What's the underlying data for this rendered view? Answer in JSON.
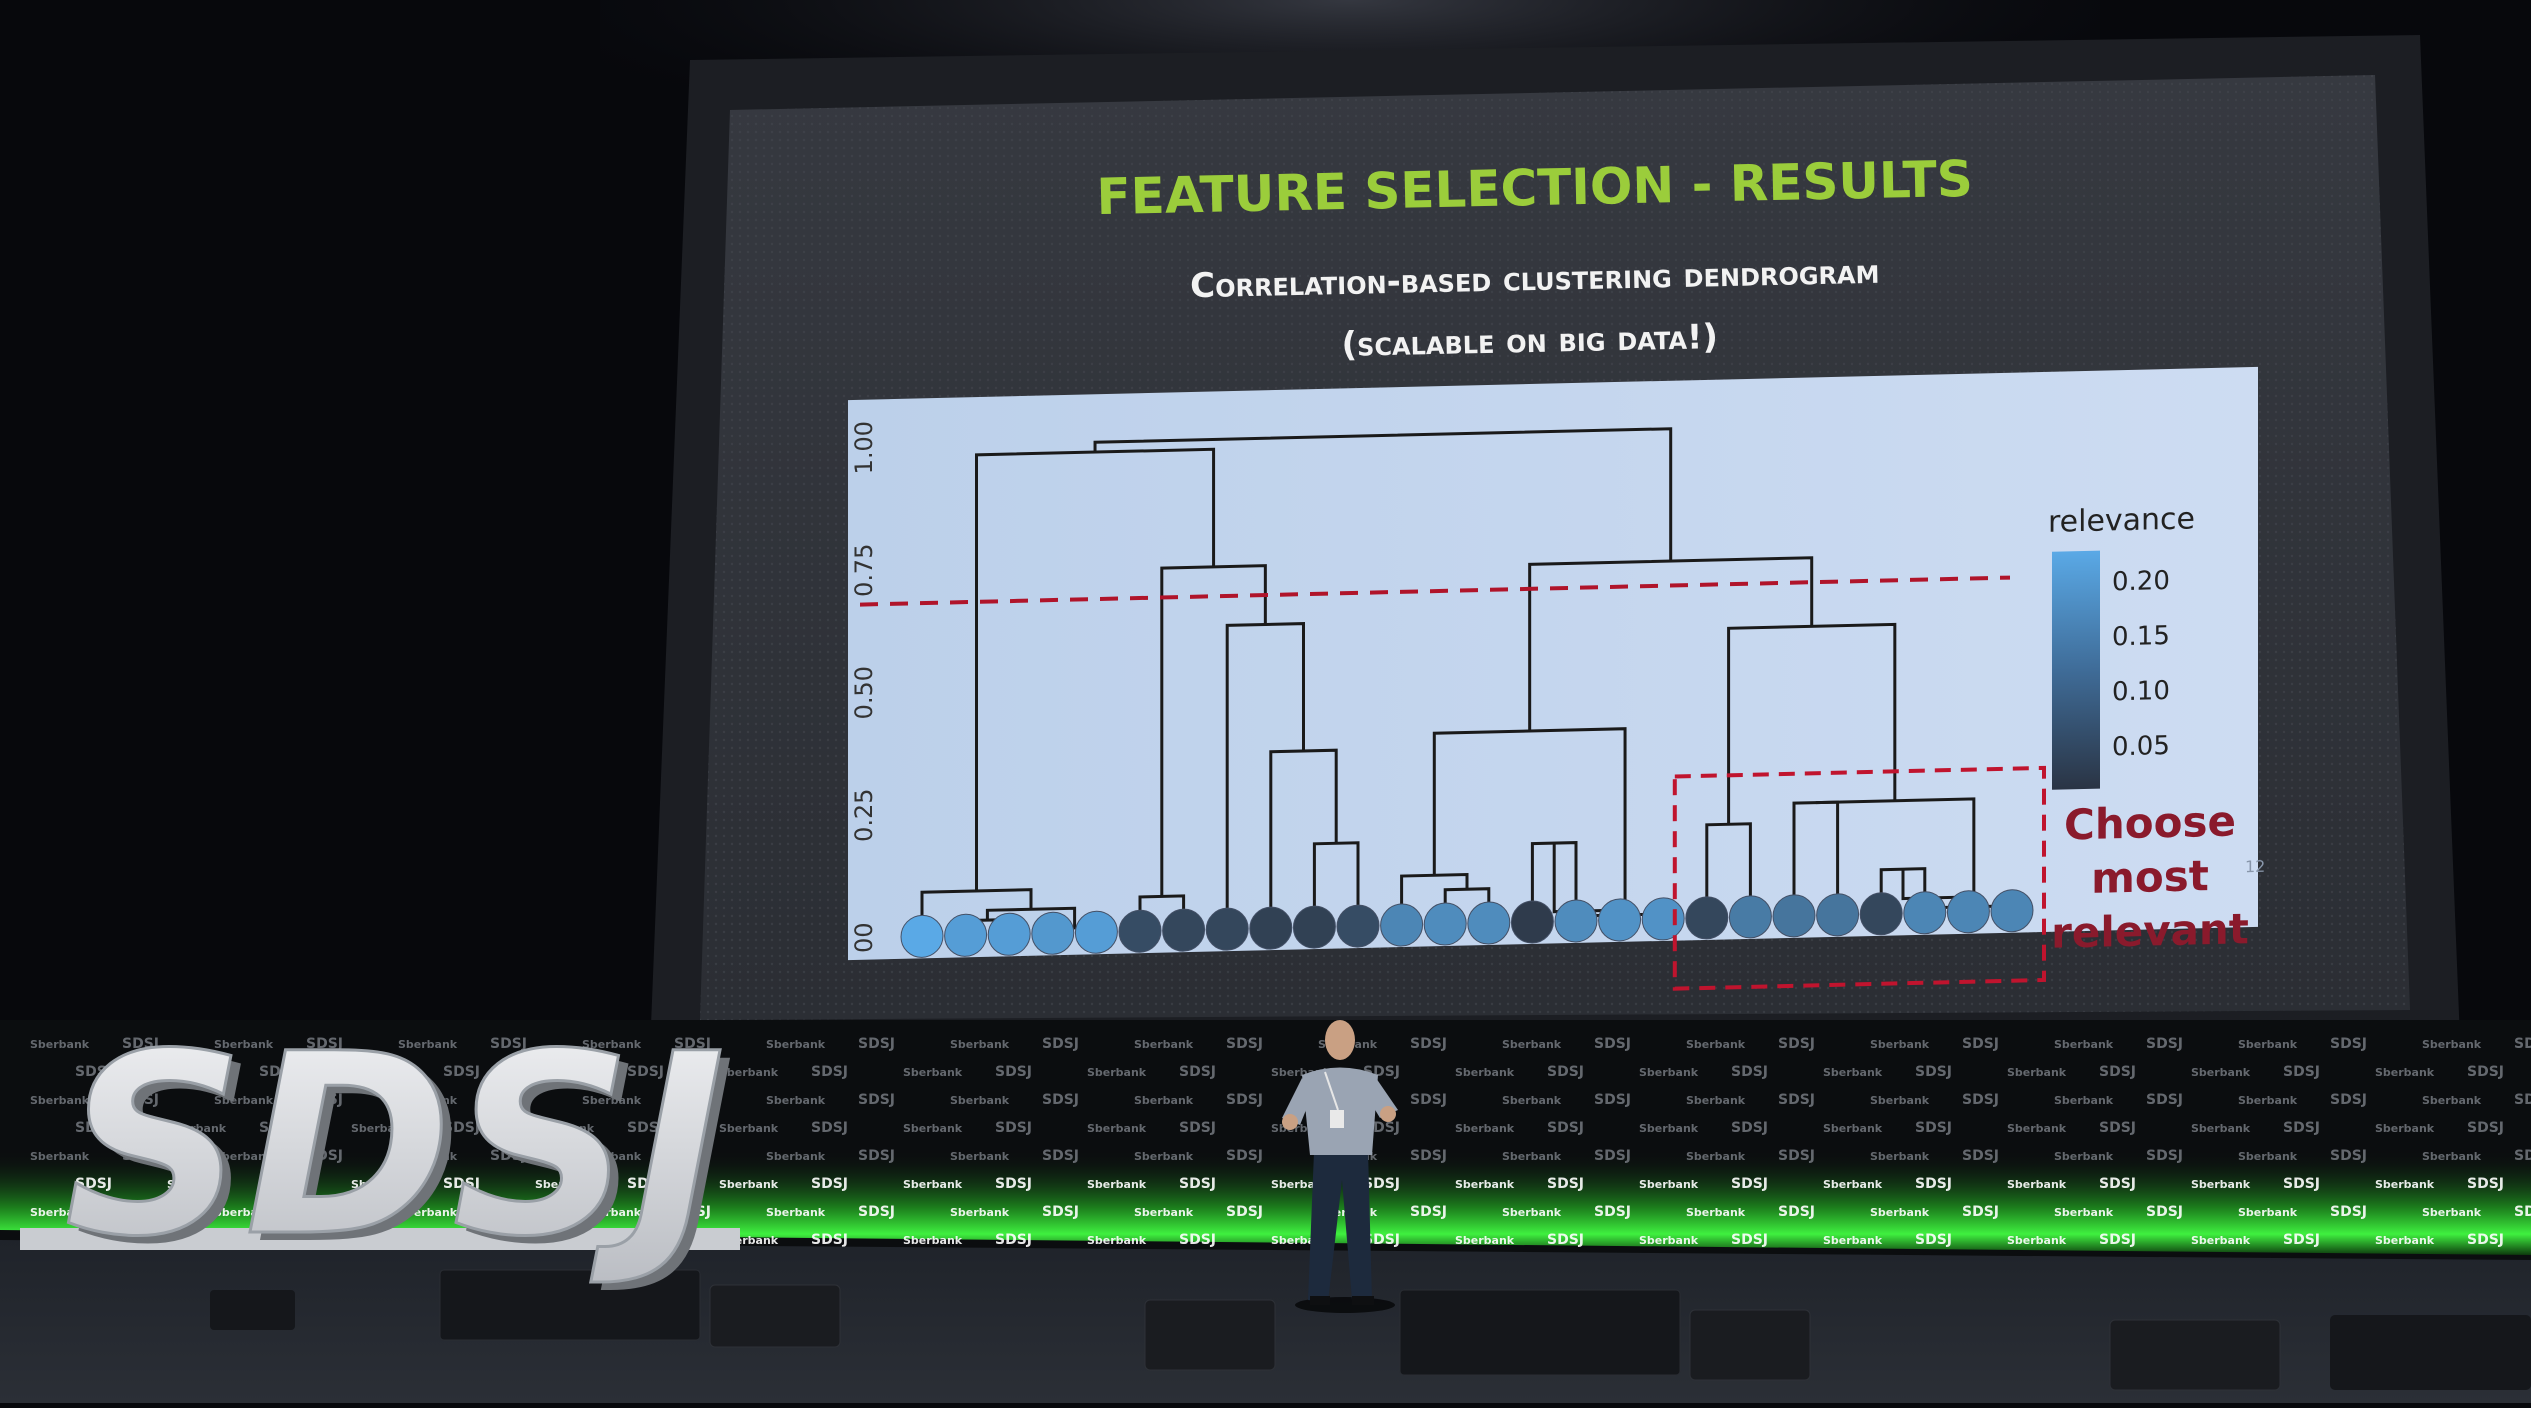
{
  "slide": {
    "title": "FEATURE SELECTION - RESULTS",
    "subtitle_line1": "Correlation-based clustering dendrogram",
    "subtitle_line2": "(scalable on big data!)",
    "page_number": "12",
    "callout_line1": "Choose",
    "callout_line2": "most",
    "callout_line3": "relevant"
  },
  "event": {
    "logo_text": "SDSJ",
    "wall_text": "SDSJ",
    "sponsor_name": "Sberbank",
    "colors": {
      "green": "#39e639",
      "wall": "#0b0d0f"
    }
  },
  "chart_data": {
    "type": "dendrogram",
    "y_tick_labels": [
      "00",
      "0.25",
      "0.50",
      "0.75",
      "1.00"
    ],
    "ylim": [
      0,
      1.0
    ],
    "cut_threshold": 0.68,
    "colorbar": {
      "label": "relevance",
      "tick_labels": [
        "0.20",
        "0.15",
        "0.10",
        "0.05"
      ],
      "colors": [
        "#5aa9e6",
        "#2f3b4c"
      ]
    },
    "highlight_box_leaves": [
      18,
      25
    ],
    "leaf_relevance": [
      0.22,
      0.2,
      0.2,
      0.19,
      0.2,
      0.06,
      0.05,
      0.05,
      0.04,
      0.04,
      0.06,
      0.16,
      0.17,
      0.17,
      0.03,
      0.17,
      0.18,
      0.18,
      0.05,
      0.14,
      0.13,
      0.13,
      0.05,
      0.16,
      0.16,
      0.16
    ],
    "merges": [
      {
        "id": "n1",
        "l": 1,
        "r": 2,
        "h": 0.03
      },
      {
        "id": "n2",
        "l": 3,
        "r": 4,
        "h": 0.01
      },
      {
        "id": "n3",
        "l": "n1",
        "r": "n2",
        "h": 0.05
      },
      {
        "id": "n4",
        "l": 0,
        "r": "n3",
        "h": 0.09
      },
      {
        "id": "n5",
        "l": 5,
        "r": 6,
        "h": 0.07
      },
      {
        "id": "n6",
        "l": 9,
        "r": 10,
        "h": 0.17
      },
      {
        "id": "n7",
        "l": 8,
        "r": "n6",
        "h": 0.36
      },
      {
        "id": "n8",
        "l": 7,
        "r": "n7",
        "h": 0.62
      },
      {
        "id": "n9",
        "l": "n5",
        "r": "n8",
        "h": 0.74
      },
      {
        "id": "n10",
        "l": "n4",
        "r": "n9",
        "h": 0.98
      },
      {
        "id": "n11",
        "l": 12,
        "r": 13,
        "h": 0.07
      },
      {
        "id": "n12",
        "l": 11,
        "r": "n11",
        "h": 0.1
      },
      {
        "id": "n13",
        "l": 14,
        "r": 15,
        "h": 0.16
      },
      {
        "id": "n14",
        "l": "n13",
        "r": 16,
        "h": 0.02
      },
      {
        "id": "n15",
        "l": "n14",
        "r": 17,
        "h": 0.01
      },
      {
        "id": "n16",
        "l": "n12",
        "r": "n15",
        "h": 0.39
      },
      {
        "id": "n17",
        "l": 18,
        "r": 19,
        "h": 0.19
      },
      {
        "id": "n18",
        "l": 20,
        "r": 21,
        "h": 0.23
      },
      {
        "id": "n19",
        "l": 22,
        "r": 23,
        "h": 0.09
      },
      {
        "id": "n20",
        "l": "n19",
        "r": 24,
        "h": 0.03
      },
      {
        "id": "n21",
        "l": "n20",
        "r": 25,
        "h": 0.01
      },
      {
        "id": "n22",
        "l": "n18",
        "r": "n21",
        "h": 0.23
      },
      {
        "id": "n23",
        "l": "n17",
        "r": "n22",
        "h": 0.59
      },
      {
        "id": "n24",
        "l": "n16",
        "r": "n23",
        "h": 0.73
      },
      {
        "id": "n25",
        "l": "n10",
        "r": "n24",
        "h": 1.0
      }
    ]
  }
}
